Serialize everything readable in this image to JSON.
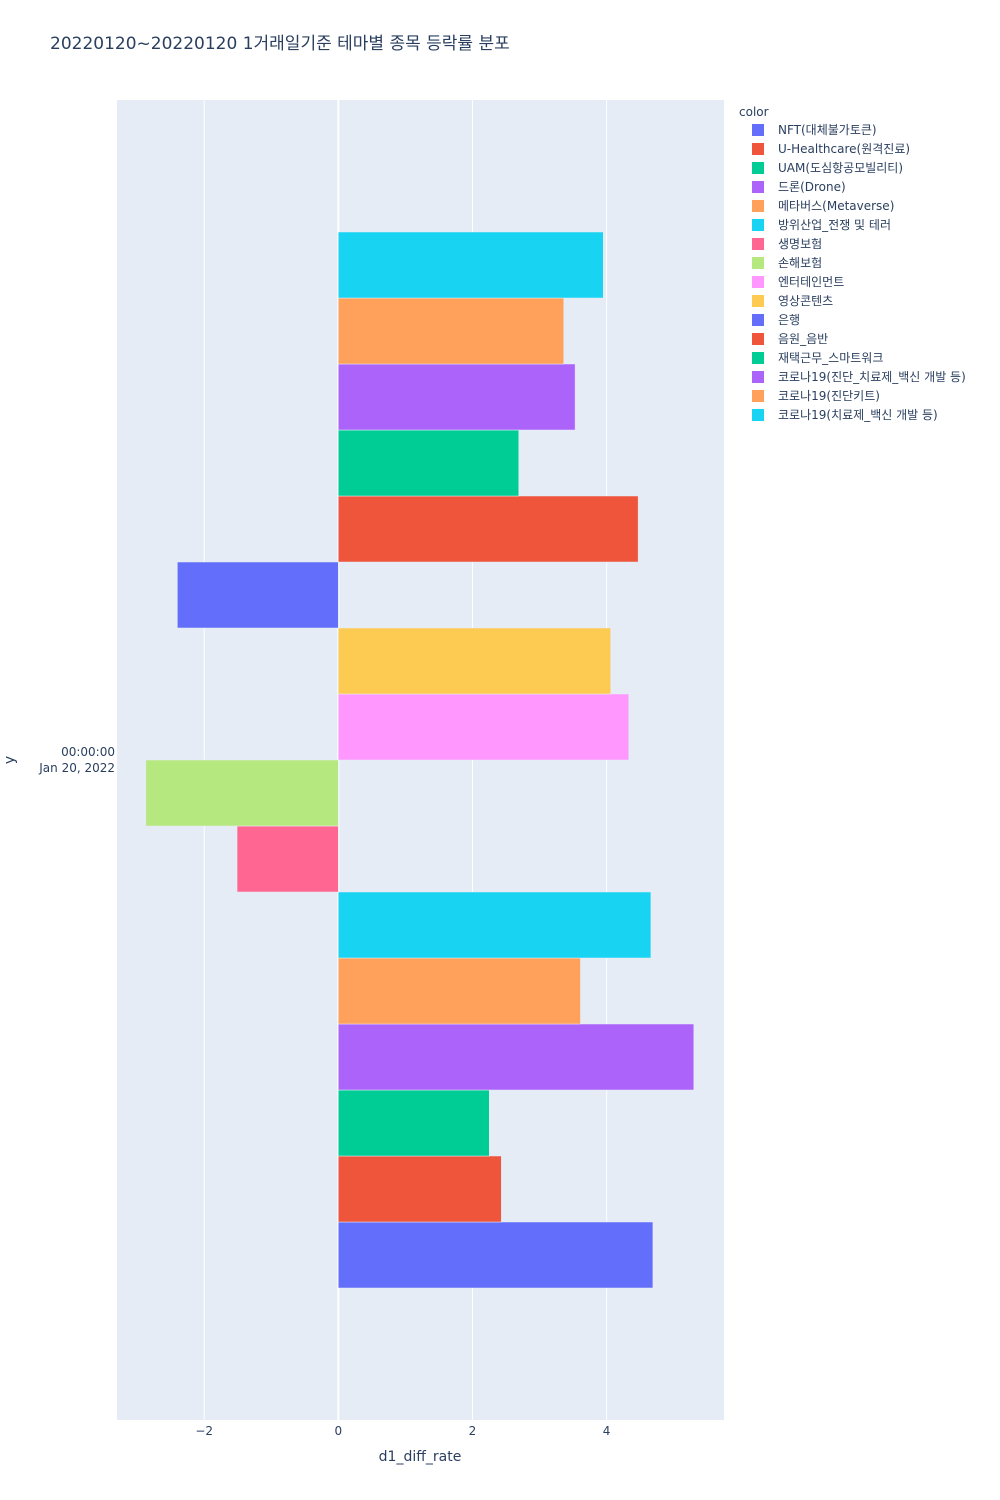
{
  "chart_data": {
    "type": "bar",
    "orientation": "horizontal",
    "barmode": "group",
    "title": "20220120~20220120 1거래일기준 테마별 종목 등락률 분포",
    "xlabel": "d1_diff_rate",
    "ylabel": "y",
    "y_category": [
      "00:00:00",
      "Jan 20, 2022"
    ],
    "xlim": [
      -3.3,
      5.75
    ],
    "x_ticks": [
      {
        "value": -2,
        "label": "−2"
      },
      {
        "value": 0,
        "label": "0"
      },
      {
        "value": 2,
        "label": "2"
      },
      {
        "value": 4,
        "label": "4"
      }
    ],
    "grid": true,
    "legend": {
      "title": "color",
      "placement": "right-top"
    },
    "series": [
      {
        "name": "NFT(대체불가토큰)",
        "color": "#636efa",
        "value": 4.69
      },
      {
        "name": "U-Healthcare(원격진료)",
        "color": "#EF553B",
        "value": 2.43
      },
      {
        "name": "UAM(도심항공모빌리티)",
        "color": "#00cc96",
        "value": 2.25
      },
      {
        "name": "드론(Drone)",
        "color": "#ab63fa",
        "value": 5.3
      },
      {
        "name": "메타버스(Metaverse)",
        "color": "#FFA15A",
        "value": 3.61
      },
      {
        "name": "방위산업_전쟁 및 테러",
        "color": "#19d3f3",
        "value": 4.66
      },
      {
        "name": "생명보험",
        "color": "#FF6692",
        "value": -1.51
      },
      {
        "name": "손해보험",
        "color": "#B6E880",
        "value": -2.87
      },
      {
        "name": "엔터테인먼트",
        "color": "#FF97FF",
        "value": 4.33
      },
      {
        "name": "영상콘텐츠",
        "color": "#FECB52",
        "value": 4.06
      },
      {
        "name": "은행",
        "color": "#636efa",
        "value": -2.4
      },
      {
        "name": "음원_음반",
        "color": "#EF553B",
        "value": 4.47
      },
      {
        "name": "재택근무_스마트워크",
        "color": "#00cc96",
        "value": 2.69
      },
      {
        "name": "코로나19(진단_치료제_백신 개발 등)",
        "color": "#ab63fa",
        "value": 3.53
      },
      {
        "name": "코로나19(진단키트)",
        "color": "#FFA15A",
        "value": 3.36
      },
      {
        "name": "코로나19(치료제_백신 개발 등)",
        "color": "#19d3f3",
        "value": 3.95
      }
    ]
  }
}
